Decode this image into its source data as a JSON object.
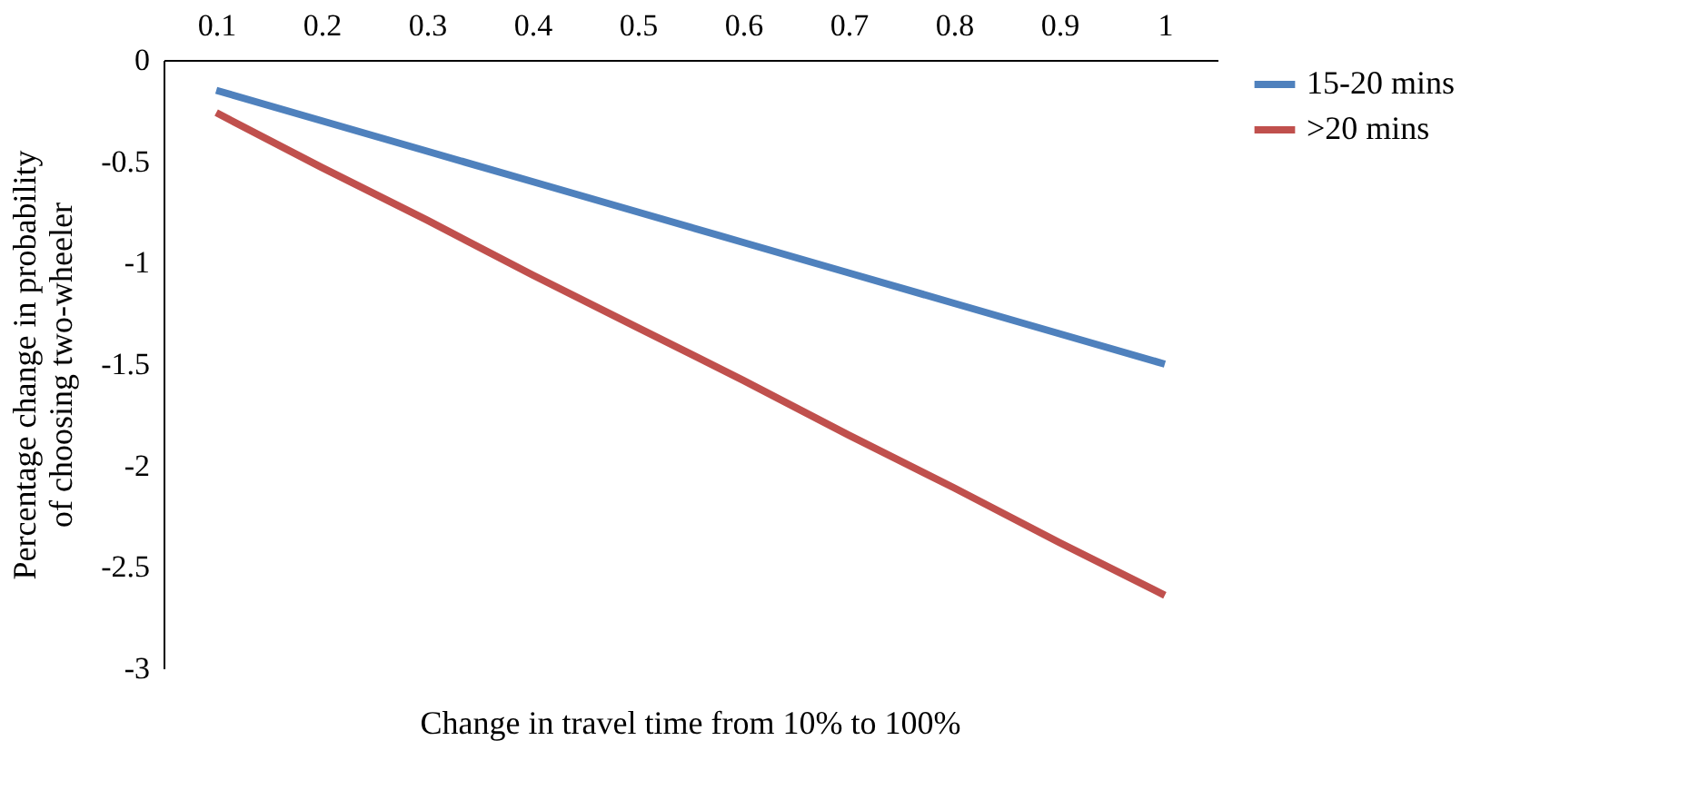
{
  "chart_data": {
    "type": "line",
    "xlabel": "Change in travel time from 10% to 100%",
    "ylabel": "Percentage change in probability of choosing two-wheeler",
    "categories": [
      "0.1",
      "0.2",
      "0.3",
      "0.4",
      "0.5",
      "0.6",
      "0.7",
      "0.8",
      "0.9",
      "1"
    ],
    "series": [
      {
        "name": "15-20 mins",
        "color": "#4f81bd",
        "values": [
          -0.15,
          -0.3,
          -0.45,
          -0.6,
          -0.75,
          -0.9,
          -1.05,
          -1.2,
          -1.35,
          -1.5
        ]
      },
      {
        "name": ">20 mins",
        "color": "#c0504d",
        "values": [
          -0.26,
          -0.53,
          -0.79,
          -1.06,
          -1.32,
          -1.58,
          -1.85,
          -2.11,
          -2.38,
          -2.64
        ]
      }
    ],
    "ylim": [
      -3,
      0
    ],
    "yticks": [
      -3,
      -2.5,
      -2,
      -1.5,
      -1,
      -0.5,
      0
    ],
    "grid": false,
    "legend": "right",
    "marker": "none",
    "line_style": "solid"
  }
}
